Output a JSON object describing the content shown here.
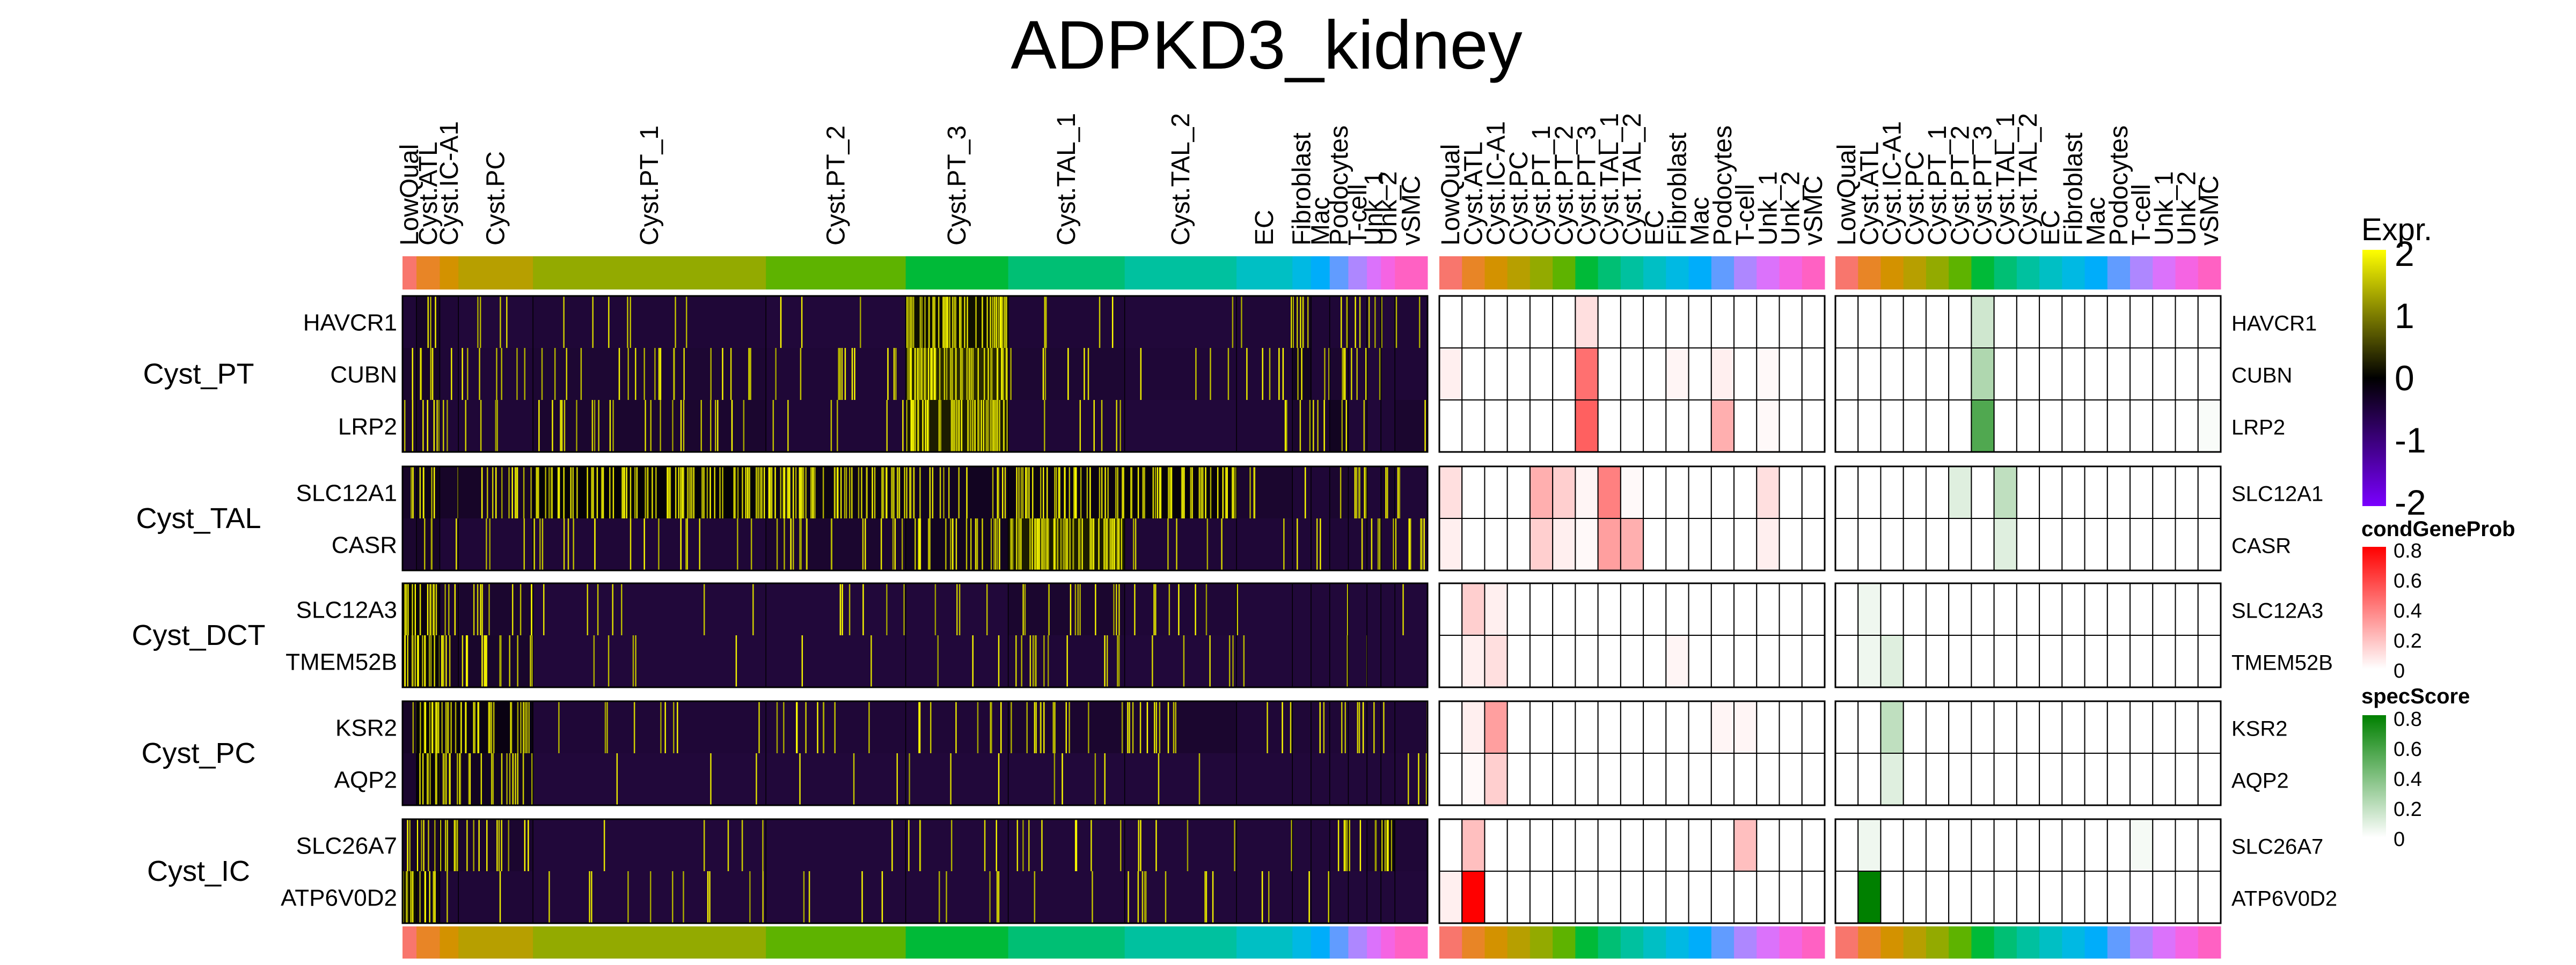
{
  "chart_data": {
    "type": "heatmap",
    "title": "ADPKD3_kidney",
    "cluster_labels": [
      "LowQual",
      "Cyst.ATL",
      "Cyst.IC-A1",
      "Cyst.PC",
      "Cyst.PT_1",
      "Cyst.PT_2",
      "Cyst.PT_3",
      "Cyst.TAL_1",
      "Cyst.TAL_2",
      "EC",
      "Fibroblast",
      "Mac",
      "Podocytes",
      "T-cell",
      "Unk_1",
      "Unk_2",
      "vSMC"
    ],
    "cluster_colors": [
      "#F8766D",
      "#E88526",
      "#D39200",
      "#B79F00",
      "#93AA00",
      "#5EB300",
      "#00BA38",
      "#00BF74",
      "#00C19F",
      "#00BFC4",
      "#00B9E3",
      "#00ADFA",
      "#619CFF",
      "#AE87FF",
      "#DB72FB",
      "#F564E3",
      "#FF61C3"
    ],
    "heatmap_cluster_widths": [
      3,
      5,
      4,
      16,
      50,
      30,
      22,
      25,
      24,
      12,
      4,
      4,
      4,
      4,
      3,
      3,
      7
    ],
    "gene_groups": [
      {
        "name": "Cyst_PT",
        "genes": [
          "HAVCR1",
          "CUBN",
          "LRP2"
        ]
      },
      {
        "name": "Cyst_TAL",
        "genes": [
          "SLC12A1",
          "CASR"
        ]
      },
      {
        "name": "Cyst_DCT",
        "genes": [
          "SLC12A3",
          "TMEM52B"
        ]
      },
      {
        "name": "Cyst_PC",
        "genes": [
          "KSR2",
          "AQP2"
        ]
      },
      {
        "name": "Cyst_IC",
        "genes": [
          "SLC26A7",
          "ATP6V0D2"
        ]
      }
    ],
    "expression_gene_cluster": [
      [
        0.1,
        0.3,
        0.1,
        0.05,
        0.1,
        0.05,
        0.9,
        0.1,
        0.05,
        0.1,
        0.3,
        0.1,
        0.1,
        0.1,
        0.05,
        0.05,
        0.1
      ],
      [
        0.2,
        0.3,
        0.1,
        0.1,
        0.15,
        0.1,
        1.0,
        0.15,
        0.1,
        0.1,
        0.4,
        0.1,
        0.2,
        0.1,
        0.05,
        0.1,
        0.1
      ],
      [
        0.2,
        0.2,
        0.1,
        0.1,
        0.2,
        0.1,
        0.95,
        0.1,
        0.05,
        0.1,
        0.2,
        0.2,
        0.4,
        0.1,
        0.05,
        0.1,
        0.2
      ],
      [
        0.3,
        0.5,
        0.3,
        0.3,
        0.75,
        0.55,
        0.4,
        0.6,
        0.7,
        0.2,
        0.1,
        0.1,
        0.2,
        0.2,
        0.1,
        0.3,
        0.1
      ],
      [
        0.2,
        0.3,
        0.1,
        0.1,
        0.1,
        0.2,
        0.4,
        0.95,
        0.1,
        0.1,
        0.1,
        0.1,
        0.1,
        0.1,
        0.1,
        0.1,
        0.1
      ],
      [
        0.8,
        0.6,
        0.2,
        0.2,
        0.05,
        0.05,
        0.05,
        0.2,
        0.1,
        0.05,
        0.05,
        0.05,
        0.05,
        0.05,
        0.05,
        0.05,
        0.05
      ],
      [
        0.6,
        0.7,
        0.3,
        0.25,
        0.05,
        0.05,
        0.05,
        0.1,
        0.05,
        0.05,
        0.05,
        0.05,
        0.05,
        0.05,
        0.05,
        0.05,
        0.05
      ],
      [
        0.3,
        0.8,
        0.6,
        0.6,
        0.1,
        0.1,
        0.1,
        0.2,
        0.2,
        0.1,
        0.1,
        0.1,
        0.1,
        0.1,
        0.1,
        0.1,
        0.1
      ],
      [
        0.2,
        0.7,
        0.4,
        0.4,
        0.05,
        0.05,
        0.05,
        0.05,
        0.05,
        0.05,
        0.05,
        0.05,
        0.05,
        0.05,
        0.05,
        0.05,
        0.05
      ],
      [
        0.3,
        0.3,
        0.4,
        0.2,
        0.05,
        0.05,
        0.05,
        0.05,
        0.05,
        0.05,
        0.05,
        0.05,
        0.1,
        0.1,
        0.2,
        0.6,
        0.1
      ],
      [
        0.9,
        0.5,
        0.1,
        0.1,
        0.05,
        0.05,
        0.05,
        0.05,
        0.05,
        0.05,
        0.05,
        0.05,
        0.05,
        0.05,
        0.05,
        0.05,
        0.05
      ]
    ],
    "row_order": [
      "HAVCR1",
      "CUBN",
      "LRP2",
      "SLC12A1",
      "CASR",
      "SLC12A3",
      "TMEM52B",
      "KSR2",
      "AQP2",
      "SLC26A7",
      "ATP6V0D2"
    ],
    "column_order": [
      "LowQual",
      "Cyst.ATL",
      "Cyst.IC-A1",
      "Cyst.PC",
      "Cyst.PT_1",
      "Cyst.PT_2",
      "Cyst.PT_3",
      "Cyst.TAL_1",
      "Cyst.TAL_2",
      "EC",
      "Fibroblast",
      "Mac",
      "Podocytes",
      "T-cell",
      "Unk_1",
      "Unk_2",
      "vSMC"
    ],
    "condGeneProb": [
      [
        0,
        0,
        0,
        0,
        0,
        0,
        0.1,
        0,
        0,
        0,
        0,
        0,
        0,
        0,
        0,
        0,
        0
      ],
      [
        0.05,
        0,
        0,
        0,
        0,
        0,
        0.45,
        0,
        0,
        0,
        0.03,
        0,
        0.05,
        0,
        0.02,
        0,
        0
      ],
      [
        0,
        0,
        0,
        0,
        0,
        0,
        0.5,
        0,
        0,
        0,
        0,
        0,
        0.25,
        0,
        0.02,
        0,
        0
      ],
      [
        0.1,
        0,
        0,
        0,
        0.25,
        0.15,
        0.03,
        0.4,
        0.02,
        0,
        0,
        0,
        0,
        0,
        0.1,
        0,
        0
      ],
      [
        0.05,
        0,
        0,
        0,
        0.15,
        0.05,
        0.02,
        0.3,
        0.25,
        0,
        0,
        0,
        0,
        0,
        0.05,
        0,
        0
      ],
      [
        0,
        0.15,
        0.05,
        0,
        0,
        0,
        0,
        0,
        0,
        0,
        0,
        0,
        0,
        0,
        0,
        0,
        0
      ],
      [
        0,
        0.05,
        0.1,
        0,
        0,
        0,
        0,
        0,
        0,
        0,
        0.03,
        0,
        0,
        0,
        0,
        0,
        0
      ],
      [
        0,
        0.05,
        0.3,
        0,
        0,
        0,
        0,
        0,
        0,
        0,
        0,
        0,
        0.03,
        0.03,
        0,
        0,
        0
      ],
      [
        0,
        0.02,
        0.15,
        0,
        0,
        0,
        0,
        0,
        0,
        0,
        0,
        0,
        0,
        0,
        0,
        0,
        0
      ],
      [
        0,
        0.2,
        0,
        0,
        0,
        0,
        0,
        0,
        0,
        0,
        0,
        0,
        0,
        0.2,
        0,
        0,
        0
      ],
      [
        0.05,
        0.95,
        0,
        0,
        0,
        0,
        0,
        0,
        0,
        0,
        0,
        0,
        0,
        0,
        0,
        0,
        0
      ]
    ],
    "specScore": [
      [
        0,
        0,
        0,
        0,
        0,
        0,
        0,
        0,
        0,
        0,
        0,
        0,
        0,
        0,
        0,
        0,
        0
      ],
      [
        0,
        0,
        0,
        0,
        0,
        0,
        0,
        0,
        0,
        0,
        0,
        0,
        0,
        0,
        0,
        0,
        0
      ],
      [
        0,
        0,
        0,
        0,
        0,
        0,
        0,
        0,
        0,
        0,
        0,
        0,
        0,
        0,
        0,
        0,
        0
      ],
      [
        0,
        0,
        0,
        0,
        0,
        0,
        0,
        0,
        0,
        0,
        0,
        0,
        0,
        0,
        0,
        0,
        0
      ],
      [
        0,
        0,
        0,
        0,
        0,
        0,
        0,
        0,
        0,
        0,
        0,
        0,
        0,
        0,
        0,
        0,
        0
      ],
      [
        0,
        0,
        0,
        0,
        0,
        0,
        0,
        0,
        0,
        0,
        0,
        0,
        0,
        0,
        0,
        0,
        0
      ],
      [
        0,
        0,
        0,
        0,
        0,
        0,
        0,
        0,
        0,
        0,
        0,
        0,
        0,
        0,
        0,
        0,
        0
      ],
      [
        0,
        0,
        0,
        0,
        0,
        0,
        0,
        0,
        0,
        0,
        0,
        0,
        0,
        0,
        0,
        0,
        0
      ],
      [
        0,
        0,
        0,
        0,
        0,
        0,
        0,
        0,
        0,
        0,
        0,
        0,
        0,
        0,
        0,
        0,
        0
      ],
      [
        0,
        0,
        0,
        0,
        0,
        0,
        0,
        0,
        0,
        0,
        0,
        0,
        0,
        0,
        0,
        0,
        0
      ],
      [
        0,
        0,
        0,
        0,
        0,
        0,
        0,
        0,
        0,
        0,
        0,
        0,
        0,
        0,
        0,
        0,
        0
      ]
    ],
    "specScore_values": [
      [
        0,
        0,
        0,
        0,
        0,
        0,
        0.15,
        0,
        0,
        0,
        0,
        0,
        0,
        0,
        0,
        0,
        0
      ],
      [
        0,
        0,
        0,
        0,
        0,
        0,
        0.25,
        0,
        0,
        0,
        0,
        0,
        0,
        0,
        0,
        0,
        0
      ],
      [
        0,
        0,
        0,
        0,
        0,
        0,
        0.55,
        0,
        0,
        0,
        0,
        0,
        0,
        0,
        0,
        0,
        0.02
      ],
      [
        0,
        0,
        0,
        0,
        0,
        0.1,
        0,
        0.2,
        0,
        0,
        0,
        0,
        0,
        0,
        0,
        0,
        0
      ],
      [
        0,
        0,
        0,
        0,
        0,
        0,
        0,
        0.1,
        0,
        0,
        0,
        0,
        0,
        0,
        0,
        0,
        0
      ],
      [
        0,
        0.05,
        0,
        0,
        0,
        0,
        0,
        0,
        0,
        0,
        0,
        0,
        0,
        0,
        0,
        0,
        0
      ],
      [
        0,
        0.05,
        0.1,
        0,
        0,
        0,
        0,
        0,
        0,
        0,
        0,
        0,
        0,
        0,
        0,
        0,
        0
      ],
      [
        0,
        0,
        0.2,
        0,
        0,
        0,
        0,
        0,
        0,
        0,
        0,
        0,
        0,
        0,
        0,
        0,
        0
      ],
      [
        0,
        0,
        0.1,
        0,
        0,
        0,
        0,
        0,
        0,
        0,
        0,
        0,
        0,
        0,
        0,
        0,
        0
      ],
      [
        0,
        0.05,
        0,
        0,
        0,
        0,
        0,
        0,
        0,
        0,
        0,
        0,
        0,
        0.03,
        0,
        0,
        0
      ],
      [
        0,
        0.85,
        0,
        0,
        0,
        0,
        0,
        0,
        0,
        0,
        0,
        0,
        0,
        0,
        0,
        0,
        0
      ]
    ],
    "legends": [
      {
        "title": "Expr.",
        "ticks": [
          "2",
          "1",
          "0",
          "-1",
          "-2"
        ],
        "values": [
          2,
          1,
          0,
          -1,
          -2
        ],
        "colors": [
          "#ffff00",
          "#000000",
          "#7a00ff"
        ]
      },
      {
        "title": "condGeneProb",
        "ticks": [
          "0.8",
          "0.6",
          "0.4",
          "0.2",
          "0"
        ],
        "values": [
          0.8,
          0.6,
          0.4,
          0.2,
          0
        ],
        "colors": [
          "#ff0000",
          "#ffffff"
        ]
      },
      {
        "title": "specScore",
        "ticks": [
          "0.8",
          "0.6",
          "0.4",
          "0.2",
          "0"
        ],
        "values": [
          0.8,
          0.6,
          0.4,
          0.2,
          0
        ],
        "colors": [
          "#008000",
          "#ffffff"
        ]
      }
    ]
  }
}
